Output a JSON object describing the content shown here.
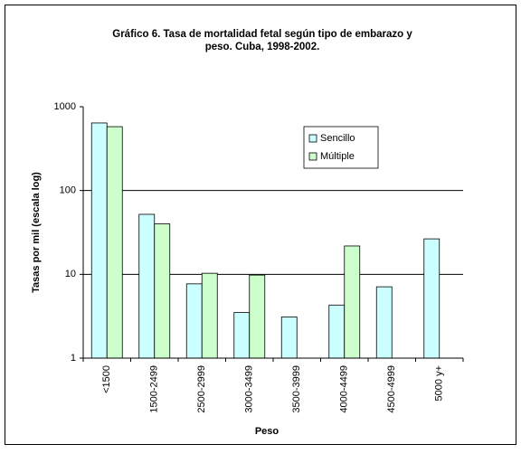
{
  "chart_data": {
    "type": "bar",
    "title": "Gráfico 6. Tasa de mortalidad fetal según tipo de embarazo y peso. Cuba, 1998-2002.",
    "x_label": "Peso",
    "y_label": "Tasas por mil (escala log)",
    "categories": [
      "<1500",
      "1500-2499",
      "2500-2999",
      "3000-3499",
      "3500-3999",
      "4000-4499",
      "4500-4999",
      "5000 y+"
    ],
    "series": [
      {
        "name": "Sencillo",
        "color": "#ccffff",
        "values": [
          640,
          52,
          7.7,
          3.5,
          3.1,
          4.3,
          7.1,
          26.5
        ]
      },
      {
        "name": "Múltiple",
        "color": "#ccffcc",
        "values": [
          578,
          40,
          10.3,
          9.8,
          null,
          21.8,
          null,
          null
        ]
      }
    ],
    "ylim": [
      1,
      1000
    ],
    "yticks": [
      1,
      10,
      100,
      1000
    ],
    "log_scale": true,
    "grid": true,
    "legend": "upper-right"
  }
}
